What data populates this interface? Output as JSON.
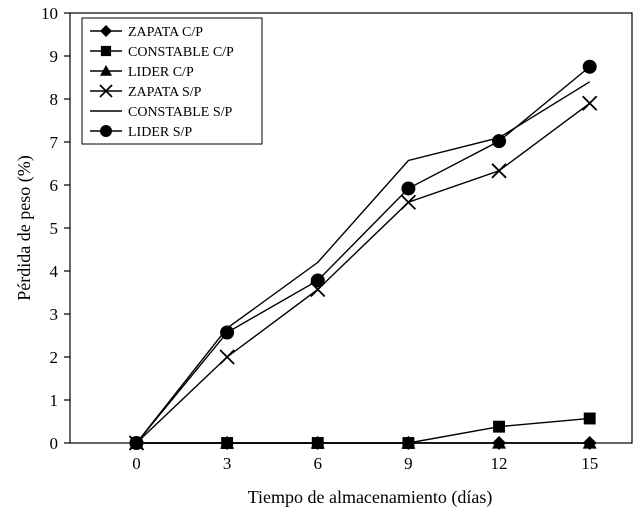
{
  "chart_data": {
    "type": "line",
    "xlabel": "Tiempo de almacenamiento (días)",
    "ylabel": "Pérdida de peso (%)",
    "xlim": [
      -2.2,
      16.4
    ],
    "ylim": [
      0,
      10
    ],
    "x_ticks": [
      "0",
      "3",
      "6",
      "9",
      "12",
      "15"
    ],
    "y_ticks": [
      "0",
      "1",
      "2",
      "3",
      "4",
      "5",
      "6",
      "7",
      "8",
      "9",
      "10"
    ],
    "grid": false,
    "legend_position": "top-left",
    "x": [
      0,
      3,
      6,
      9,
      12,
      15
    ],
    "series": [
      {
        "name": "ZAPATA C/P",
        "marker": "diamond",
        "values": [
          0,
          0,
          0,
          0,
          0,
          0
        ]
      },
      {
        "name": "CONSTABLE C/P",
        "marker": "square",
        "values": [
          0,
          0,
          0,
          0,
          0.38,
          0.57
        ]
      },
      {
        "name": "LIDER C/P",
        "marker": "triangle",
        "values": [
          0,
          0,
          0,
          0,
          0,
          0
        ]
      },
      {
        "name": "ZAPATA S/P",
        "marker": "x",
        "values": [
          0,
          2.0,
          3.57,
          5.6,
          6.33,
          7.9
        ]
      },
      {
        "name": "CONSTABLE S/P",
        "marker": "none",
        "values": [
          0,
          2.67,
          4.2,
          6.57,
          7.1,
          8.4
        ]
      },
      {
        "name": "LIDER S/P",
        "marker": "circle",
        "values": [
          0,
          2.57,
          3.78,
          5.92,
          7.02,
          8.75
        ]
      }
    ]
  }
}
